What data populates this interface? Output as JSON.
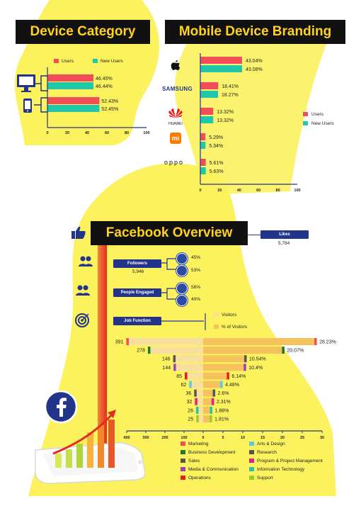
{
  "colors": {
    "users": "#f24e57",
    "new_users": "#20c7a8",
    "yellow": "#fbf25e",
    "dark": "#111111",
    "accent": "#ffd21f",
    "navy": "#22358a",
    "visitors_light": "#f8dfa0",
    "visitors_dark": "#f6c25c"
  },
  "device": {
    "title": "Device Category",
    "legend": [
      "Users",
      "New Users"
    ],
    "rows": [
      {
        "icon": "desktop-icon",
        "users_label": "46.45%",
        "new_label": "46.44%"
      },
      {
        "icon": "mobile-phone-icon",
        "users_label": "52.43%",
        "new_label": "52.45%"
      }
    ]
  },
  "branding": {
    "title": "Mobile Device Branding",
    "legend": [
      "Users",
      "New Users"
    ],
    "rows": [
      {
        "brand": "apple-logo",
        "users_label": "43.04%",
        "new_label": "43.08%"
      },
      {
        "brand": "SAMSUNG",
        "users_label": "18.41%",
        "new_label": "18.27%"
      },
      {
        "brand": "HUAWEI",
        "users_label": "13.32%",
        "new_label": "13.32%"
      },
      {
        "brand": "mi-logo",
        "users_label": "5.29%",
        "new_label": "5.34%"
      },
      {
        "brand": "oppo",
        "users_label": "5.61%",
        "new_label": "5.63%"
      }
    ]
  },
  "facebook": {
    "title": "Facebook Overview",
    "likes_label": "Likes",
    "likes_value": "5,784",
    "followers_label": "Followers",
    "followers_value": "5,946",
    "followers_pcts": [
      "45%",
      "53%"
    ],
    "engaged_label": "People Engaged",
    "engaged_pcts": [
      "58%",
      "40%"
    ],
    "job_label": "Job Function",
    "job_legend": [
      "Visitors",
      "% of Visitors"
    ],
    "categories": [
      "Marketing",
      "Arts & Design",
      "Business Development",
      "Research",
      "Sales",
      "Program & Project Management",
      "Media & Communication",
      "Information Technology",
      "Operations",
      "Support"
    ]
  },
  "chart_data": [
    {
      "type": "bar",
      "title": "Device Category",
      "categories": [
        "Desktop",
        "Mobile"
      ],
      "series": [
        {
          "name": "Users",
          "values": [
            46.45,
            52.43
          ]
        },
        {
          "name": "New Users",
          "values": [
            46.44,
            52.45
          ]
        }
      ],
      "xlim": [
        0,
        100
      ],
      "ticks": [
        "0",
        "20",
        "40",
        "60",
        "80",
        "100"
      ]
    },
    {
      "type": "bar",
      "title": "Mobile Device Branding",
      "categories": [
        "Apple",
        "Samsung",
        "Huawei",
        "Xiaomi",
        "Oppo"
      ],
      "series": [
        {
          "name": "Users",
          "values": [
            43.04,
            18.41,
            13.32,
            5.29,
            5.61
          ]
        },
        {
          "name": "New Users",
          "values": [
            43.08,
            18.27,
            13.32,
            5.34,
            5.63
          ]
        }
      ],
      "xlim": [
        0,
        100
      ],
      "ticks": [
        "0",
        "20",
        "40",
        "60",
        "80",
        "100"
      ]
    },
    {
      "type": "bar",
      "title": "Job Function",
      "legend": [
        "Visitors",
        "% of Visitors"
      ],
      "visitors": [
        391,
        278,
        146,
        144,
        85,
        62,
        36,
        32,
        26,
        25
      ],
      "percent": [
        28.23,
        20.07,
        10.54,
        10.4,
        6.14,
        4.48,
        2.6,
        2.31,
        1.88,
        1.81
      ],
      "percent_labels": [
        "28.23%",
        "20.07%",
        "10.54%",
        "10.4%",
        "6.14%",
        "4.48%",
        "2.6%",
        "2.31%",
        "1.88%",
        "1.81%"
      ],
      "marker_colors": [
        "#f24e57",
        "#1a7a2e",
        "#555555",
        "#9b3fc8",
        "#e61e1e",
        "#5bc8e8",
        "#555555",
        "#e61e8c",
        "#20c7a8",
        "#9ccc2a"
      ],
      "left_ticks": [
        "400",
        "300",
        "200",
        "100"
      ],
      "right_ticks": [
        "0",
        "5",
        "10",
        "15",
        "20",
        "25",
        "30"
      ]
    }
  ]
}
